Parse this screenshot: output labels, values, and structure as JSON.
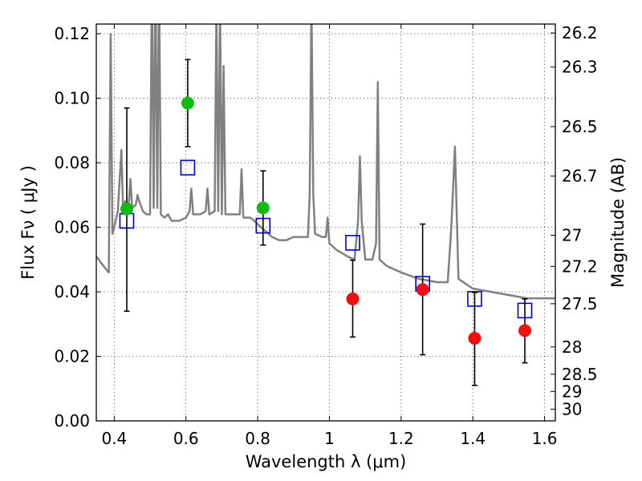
{
  "chart_data": {
    "type": "scatter",
    "xlabel": "Wavelength  λ (μm)",
    "ylabel": "Flux  Fν  ( μJy )",
    "y2label": "Magnitude (AB)",
    "xlim": [
      0.35,
      1.63
    ],
    "ylim": [
      0.0,
      0.123
    ],
    "grid": true,
    "x_ticks": [
      0.4,
      0.6,
      0.8,
      1.0,
      1.2,
      1.4,
      1.6
    ],
    "x_tick_labels": [
      "0.4",
      "0.6",
      "0.8",
      "1",
      "1.2",
      "1.4",
      "1.6"
    ],
    "y_ticks": [
      0.0,
      0.02,
      0.04,
      0.06,
      0.08,
      0.1,
      0.12
    ],
    "y_tick_labels": [
      "0.00",
      "0.02",
      "0.04",
      "0.06",
      "0.08",
      "0.10",
      "0.12"
    ],
    "y2_ticks": [
      26.2,
      26.3,
      26.5,
      26.7,
      27,
      27.2,
      27.5,
      28,
      28.5,
      29,
      30
    ],
    "y2_tick_labels": [
      "26.2",
      "26.3",
      "26.5",
      "26.7",
      "27",
      "27.2",
      "27.5",
      "28",
      "28.5",
      "29",
      "30"
    ],
    "series": [
      {
        "marker": "square-open",
        "color": "#0000cc",
        "x": [
          0.435,
          0.605,
          0.815,
          1.065,
          1.26,
          1.405,
          1.545
        ],
        "y": [
          0.062,
          0.0785,
          0.0605,
          0.0552,
          0.0425,
          0.0378,
          0.0342
        ]
      },
      {
        "marker": "circle",
        "color": "#11bb11",
        "x": [
          0.435,
          0.605,
          0.815
        ],
        "y": [
          0.0657,
          0.0985,
          0.066
        ],
        "yerr_low": [
          0.034,
          0.085,
          0.0545
        ],
        "yerr_high": [
          0.097,
          0.112,
          0.0775
        ]
      },
      {
        "marker": "circle",
        "color": "#ee1111",
        "x": [
          1.065,
          1.26,
          1.405,
          1.545
        ],
        "y": [
          0.0378,
          0.0407,
          0.0256,
          0.028
        ],
        "yerr_low": [
          0.026,
          0.0205,
          0.011,
          0.018
        ],
        "yerr_high": [
          0.0498,
          0.061,
          0.0398,
          0.0378
        ]
      },
      {
        "marker": "line",
        "color": "#808080",
        "x": [
          0.35,
          0.37,
          0.385,
          0.39,
          0.395,
          0.4,
          0.41,
          0.42,
          0.425,
          0.43,
          0.44,
          0.445,
          0.45,
          0.46,
          0.465,
          0.47,
          0.48,
          0.49,
          0.5,
          0.505,
          0.51,
          0.515,
          0.52,
          0.525,
          0.53,
          0.54,
          0.55,
          0.56,
          0.58,
          0.6,
          0.61,
          0.615,
          0.62,
          0.64,
          0.655,
          0.66,
          0.665,
          0.68,
          0.685,
          0.69,
          0.695,
          0.7,
          0.705,
          0.71,
          0.73,
          0.75,
          0.755,
          0.76,
          0.78,
          0.8,
          0.82,
          0.84,
          0.86,
          0.88,
          0.9,
          0.92,
          0.94,
          0.945,
          0.95,
          0.955,
          0.96,
          0.98,
          0.99,
          0.995,
          1.0,
          1.02,
          1.05,
          1.07,
          1.08,
          1.085,
          1.09,
          1.1,
          1.12,
          1.13,
          1.135,
          1.14,
          1.16,
          1.2,
          1.25,
          1.3,
          1.33,
          1.34,
          1.35,
          1.36,
          1.4,
          1.45,
          1.5,
          1.55,
          1.6,
          1.63
        ],
        "y": [
          0.051,
          0.048,
          0.046,
          0.12,
          0.058,
          0.06,
          0.065,
          0.084,
          0.064,
          0.068,
          0.066,
          0.075,
          0.066,
          0.067,
          0.07,
          0.068,
          0.065,
          0.064,
          0.064,
          0.14,
          0.066,
          0.14,
          0.066,
          0.14,
          0.064,
          0.063,
          0.064,
          0.062,
          0.062,
          0.063,
          0.065,
          0.072,
          0.064,
          0.064,
          0.065,
          0.072,
          0.064,
          0.065,
          0.13,
          0.065,
          0.13,
          0.064,
          0.11,
          0.064,
          0.064,
          0.064,
          0.078,
          0.063,
          0.063,
          0.061,
          0.059,
          0.057,
          0.056,
          0.056,
          0.057,
          0.057,
          0.057,
          0.07,
          0.13,
          0.07,
          0.058,
          0.057,
          0.057,
          0.063,
          0.055,
          0.053,
          0.051,
          0.05,
          0.062,
          0.082,
          0.062,
          0.05,
          0.05,
          0.055,
          0.105,
          0.05,
          0.048,
          0.046,
          0.044,
          0.043,
          0.043,
          0.06,
          0.085,
          0.044,
          0.041,
          0.04,
          0.039,
          0.038,
          0.038,
          0.038
        ]
      }
    ]
  }
}
